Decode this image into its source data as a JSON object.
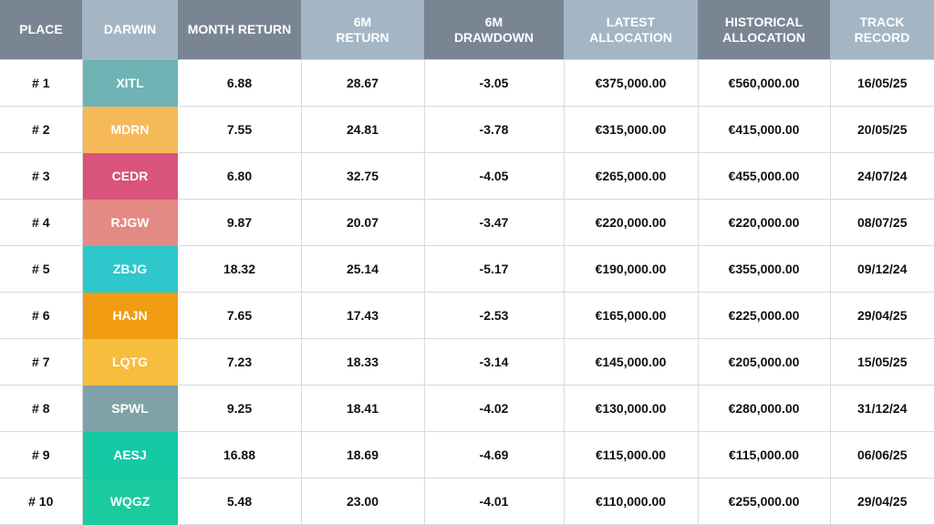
{
  "table": {
    "header": [
      "PLACE",
      "DARWIN",
      "MONTH RETURN",
      "6M\nRETURN",
      "6M\nDRAWDOWN",
      "LATEST\nALLOCATION",
      "HISTORICAL\nALLOCATION",
      "TRACK\nRECORD"
    ],
    "header_colors": [
      "#7a8593",
      "#a4b6c4",
      "#7a8593",
      "#a4b6c4",
      "#7a8593",
      "#a4b6c4",
      "#7a8593",
      "#a4b6c4"
    ],
    "rows": [
      {
        "color": "#6fb3b5",
        "cells": [
          "# 1",
          "XITL",
          "6.88",
          "28.67",
          "-3.05",
          "€375,000.00",
          "€560,000.00",
          "16/05/25"
        ]
      },
      {
        "color": "#f5b95a",
        "cells": [
          "# 2",
          "MDRN",
          "7.55",
          "24.81",
          "-3.78",
          "€315,000.00",
          "€415,000.00",
          "20/05/25"
        ]
      },
      {
        "color": "#d9537c",
        "cells": [
          "# 3",
          "CEDR",
          "6.80",
          "32.75",
          "-4.05",
          "€265,000.00",
          "€455,000.00",
          "24/07/24"
        ]
      },
      {
        "color": "#e48a85",
        "cells": [
          "# 4",
          "RJGW",
          "9.87",
          "20.07",
          "-3.47",
          "€220,000.00",
          "€220,000.00",
          "08/07/25"
        ]
      },
      {
        "color": "#2ec8cc",
        "cells": [
          "# 5",
          "ZBJG",
          "18.32",
          "25.14",
          "-5.17",
          "€190,000.00",
          "€355,000.00",
          "09/12/24"
        ]
      },
      {
        "color": "#f19c12",
        "cells": [
          "# 6",
          "HAJN",
          "7.65",
          "17.43",
          "-2.53",
          "€165,000.00",
          "€225,000.00",
          "29/04/25"
        ]
      },
      {
        "color": "#f7bd3d",
        "cells": [
          "# 7",
          "LQTG",
          "7.23",
          "18.33",
          "-3.14",
          "€145,000.00",
          "€205,000.00",
          "15/05/25"
        ]
      },
      {
        "color": "#7ea2a7",
        "cells": [
          "# 8",
          "SPWL",
          "9.25",
          "18.41",
          "-4.02",
          "€130,000.00",
          "€280,000.00",
          "31/12/24"
        ]
      },
      {
        "color": "#16c8a4",
        "cells": [
          "# 9",
          "AESJ",
          "16.88",
          "18.69",
          "-4.69",
          "€115,000.00",
          "€115,000.00",
          "06/06/25"
        ]
      },
      {
        "color": "#1ccaa0",
        "cells": [
          "# 10",
          "WQGZ",
          "5.48",
          "23.00",
          "-4.01",
          "€110,000.00",
          "€255,000.00",
          "29/04/25"
        ]
      }
    ]
  }
}
